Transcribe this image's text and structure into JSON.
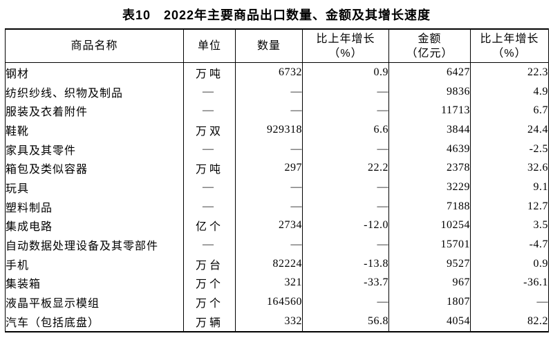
{
  "page_title": "表10　2022年主要商品出口数量、金额及其增长速度",
  "table": {
    "headers": {
      "name": "商品名称",
      "unit": "单位",
      "quantity": "数量",
      "qty_growth_line1": "比上年增长",
      "qty_growth_line2": "（%）",
      "amount_line1": "金额",
      "amount_line2": "（亿元）",
      "amt_growth_line1": "比上年增长",
      "amt_growth_line2": "（%）"
    },
    "rows": [
      {
        "name": "钢材",
        "unit": "万吨",
        "quantity": "6732",
        "qty_growth": "0.9",
        "amount": "6427",
        "amt_growth": "22.3"
      },
      {
        "name": "纺织纱线、织物及制品",
        "unit": "—",
        "quantity": "—",
        "qty_growth": "—",
        "amount": "9836",
        "amt_growth": "4.9"
      },
      {
        "name": "服装及衣着附件",
        "unit": "—",
        "quantity": "—",
        "qty_growth": "—",
        "amount": "11713",
        "amt_growth": "6.7"
      },
      {
        "name": "鞋靴",
        "unit": "万双",
        "quantity": "929318",
        "qty_growth": "6.6",
        "amount": "3844",
        "amt_growth": "24.4"
      },
      {
        "name": "家具及其零件",
        "unit": "—",
        "quantity": "—",
        "qty_growth": "—",
        "amount": "4639",
        "amt_growth": "-2.5"
      },
      {
        "name": "箱包及类似容器",
        "unit": "万吨",
        "quantity": "297",
        "qty_growth": "22.2",
        "amount": "2378",
        "amt_growth": "32.6"
      },
      {
        "name": "玩具",
        "unit": "—",
        "quantity": "—",
        "qty_growth": "—",
        "amount": "3229",
        "amt_growth": "9.1"
      },
      {
        "name": "塑料制品",
        "unit": "—",
        "quantity": "—",
        "qty_growth": "—",
        "amount": "7188",
        "amt_growth": "12.7"
      },
      {
        "name": "集成电路",
        "unit": "亿个",
        "quantity": "2734",
        "qty_growth": "-12.0",
        "amount": "10254",
        "amt_growth": "3.5"
      },
      {
        "name": "自动数据处理设备及其零部件",
        "unit": "—",
        "quantity": "—",
        "qty_growth": "—",
        "amount": "15701",
        "amt_growth": "-4.7"
      },
      {
        "name": "手机",
        "unit": "万台",
        "quantity": "82224",
        "qty_growth": "-13.8",
        "amount": "9527",
        "amt_growth": "0.9"
      },
      {
        "name": "集装箱",
        "unit": "万个",
        "quantity": "321",
        "qty_growth": "-33.7",
        "amount": "967",
        "amt_growth": "-36.1"
      },
      {
        "name": "液晶平板显示模组",
        "unit": "万个",
        "quantity": "164560",
        "qty_growth": "—",
        "amount": "1807",
        "amt_growth": "—"
      },
      {
        "name": "汽车（包括底盘）",
        "unit": "万辆",
        "quantity": "332",
        "qty_growth": "56.8",
        "amount": "4054",
        "amt_growth": "82.2"
      }
    ]
  }
}
